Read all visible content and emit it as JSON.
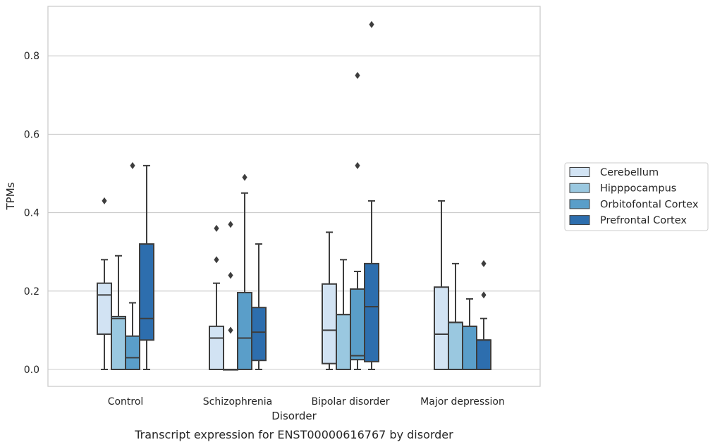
{
  "chart_data": {
    "type": "box",
    "xlabel": "Disorder",
    "ylabel": "TPMs",
    "caption": "Transcript expression for ENST00000616767 by disorder",
    "ylim": [
      -0.042,
      0.92
    ],
    "yticks": [
      0.0,
      0.2,
      0.4,
      0.6,
      0.8
    ],
    "ytick_labels": [
      "0.0",
      "0.2",
      "0.4",
      "0.6",
      "0.8"
    ],
    "grid": "horizontal",
    "legend_position": "right",
    "categories": [
      "Control",
      "Schizophrenia",
      "Bipolar disorder",
      "Major depression"
    ],
    "series": [
      {
        "name": "Cerebellum",
        "color": "#d2e3f3",
        "boxes": [
          {
            "whislo": 0.0,
            "q1": 0.09,
            "med": 0.19,
            "q3": 0.22,
            "whishi": 0.28,
            "fliers": [
              0.43
            ]
          },
          {
            "whislo": 0.0,
            "q1": 0.0,
            "med": 0.08,
            "q3": 0.11,
            "whishi": 0.22,
            "fliers": [
              0.28,
              0.36
            ]
          },
          {
            "whislo": 0.0,
            "q1": 0.015,
            "med": 0.1,
            "q3": 0.218,
            "whishi": 0.35,
            "fliers": []
          },
          {
            "whislo": 0.0,
            "q1": 0.0,
            "med": 0.09,
            "q3": 0.21,
            "whishi": 0.43,
            "fliers": []
          }
        ]
      },
      {
        "name": "Hipppocampus",
        "color": "#9ac8e0",
        "boxes": [
          {
            "whislo": 0.0,
            "q1": 0.0,
            "med": 0.13,
            "q3": 0.135,
            "whishi": 0.29,
            "fliers": []
          },
          {
            "whislo": 0.0,
            "q1": 0.0,
            "med": 0.0,
            "q3": 0.0,
            "whishi": 0.0,
            "fliers": [
              0.1,
              0.24,
              0.37
            ]
          },
          {
            "whislo": 0.0,
            "q1": 0.0,
            "med": 0.14,
            "q3": 0.14,
            "whishi": 0.28,
            "fliers": []
          },
          {
            "whislo": 0.0,
            "q1": 0.0,
            "med": 0.12,
            "q3": 0.12,
            "whishi": 0.27,
            "fliers": []
          }
        ]
      },
      {
        "name": "Orbitofontal Cortex",
        "color": "#5a9ec9",
        "boxes": [
          {
            "whislo": 0.0,
            "q1": 0.0,
            "med": 0.03,
            "q3": 0.085,
            "whishi": 0.17,
            "fliers": [
              0.52
            ]
          },
          {
            "whislo": 0.0,
            "q1": 0.0,
            "med": 0.08,
            "q3": 0.196,
            "whishi": 0.45,
            "fliers": [
              0.49
            ]
          },
          {
            "whislo": 0.0,
            "q1": 0.025,
            "med": 0.035,
            "q3": 0.205,
            "whishi": 0.25,
            "fliers": [
              0.52,
              0.75
            ]
          },
          {
            "whislo": 0.0,
            "q1": 0.0,
            "med": 0.11,
            "q3": 0.11,
            "whishi": 0.18,
            "fliers": []
          }
        ]
      },
      {
        "name": "Prefrontal Cortex",
        "color": "#2d6eae",
        "boxes": [
          {
            "whislo": 0.0,
            "q1": 0.075,
            "med": 0.13,
            "q3": 0.32,
            "whishi": 0.52,
            "fliers": []
          },
          {
            "whislo": 0.0,
            "q1": 0.023,
            "med": 0.095,
            "q3": 0.158,
            "whishi": 0.32,
            "fliers": []
          },
          {
            "whislo": 0.0,
            "q1": 0.02,
            "med": 0.16,
            "q3": 0.27,
            "whishi": 0.43,
            "fliers": [
              0.88
            ]
          },
          {
            "whislo": 0.0,
            "q1": 0.0,
            "med": 0.075,
            "q3": 0.075,
            "whishi": 0.13,
            "fliers": [
              0.19,
              0.27
            ]
          }
        ]
      }
    ]
  }
}
